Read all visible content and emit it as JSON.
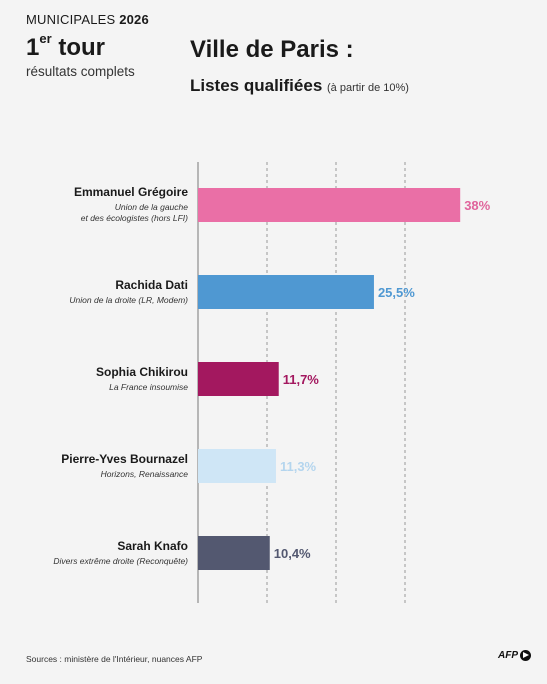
{
  "header": {
    "kicker_prefix": "MUNICIPALES",
    "kicker_year": "2026",
    "tour_number": "1",
    "tour_sup": "er",
    "tour_word": "tour",
    "subtitle": "résultats complets",
    "title": "Ville de Paris :",
    "section": "Listes qualifiées",
    "section_note": "(à partir de 10%)"
  },
  "footer": {
    "source": "Sources : ministère de l'Intérieur, nuances AFP",
    "logo": "AFP"
  },
  "chart_data": {
    "type": "bar",
    "orientation": "horizontal",
    "categories": [
      "Emmanuel Grégoire",
      "Rachida Dati",
      "Sophia Chikirou",
      "Pierre-Yves Bournazel",
      "Sarah Knafo"
    ],
    "lists": [
      [
        "Union de la gauche",
        "et des écologistes (hors LFI)"
      ],
      [
        "Union de la droite (LR, Modem)"
      ],
      [
        "La France insoumise"
      ],
      [
        "Horizons, Renaissance"
      ],
      [
        "Divers extrême droite (Reconquête)"
      ]
    ],
    "values": [
      38,
      25.5,
      11.7,
      11.3,
      10.4
    ],
    "value_labels": [
      "38%",
      "25,5%",
      "11,7%",
      "11,3%",
      "10,4%"
    ],
    "colors": [
      "#ea6fa6",
      "#4f98d2",
      "#a3185f",
      "#cfe6f6",
      "#535870"
    ],
    "label_colors": [
      "#e0649c",
      "#4f98d2",
      "#a3185f",
      "#b4d5ee",
      "#535870"
    ],
    "xlim": [
      0,
      40
    ],
    "gridlines": [
      0,
      10,
      20,
      30
    ],
    "grid": true,
    "legend": "none"
  }
}
